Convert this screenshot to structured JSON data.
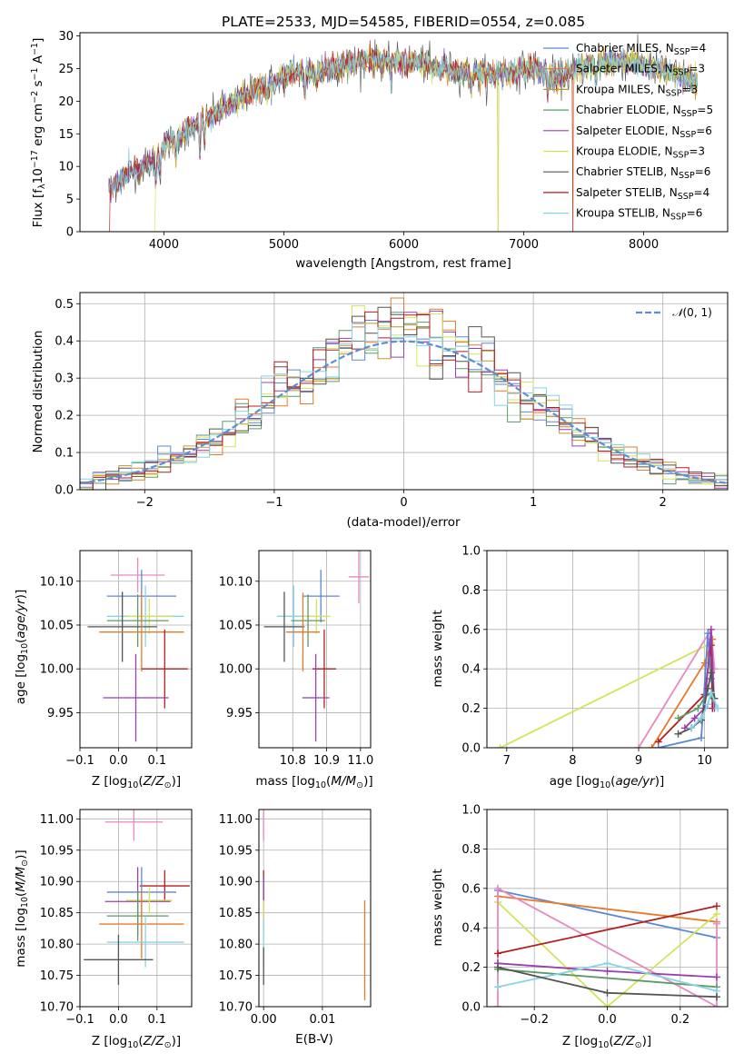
{
  "colors": {
    "Chabrier MILES": "#5b87d6",
    "Salpeter MILES": "#e67a29",
    "Kroupa MILES": "#c7962a",
    "Chabrier ELODIE": "#5c9a6b",
    "Salpeter ELODIE": "#9b3fb0",
    "Kroupa ELODIE": "#d4e35a",
    "Chabrier STELIB": "#555555",
    "Salpeter STELIB": "#b31f1f",
    "Kroupa STELIB": "#86d4e6",
    "pink": "#e68ac0",
    "gaussian": "#5b8fd6"
  },
  "chart_data": [
    {
      "id": "spectrum",
      "type": "line",
      "title": "PLATE=2533, MJD=54585, FIBERID=0554, z=0.085",
      "xlabel": "wavelength [Angstrom, rest frame]",
      "ylabel": "Flux [fλ10⁻¹⁷ erg cm⁻² s⁻¹ A⁻¹]",
      "xlim": [
        3300,
        8700
      ],
      "ylim": [
        0,
        30.5
      ],
      "xticks": [
        4000,
        5000,
        6000,
        7000,
        8000
      ],
      "yticks": [
        0,
        5,
        10,
        15,
        20,
        25,
        30
      ],
      "grid": false,
      "legend_position": "top-right",
      "continuum": [
        [
          3550,
          6.5
        ],
        [
          3700,
          9
        ],
        [
          3900,
          10.5
        ],
        [
          4000,
          13
        ],
        [
          4100,
          14.5
        ],
        [
          4300,
          16.5
        ],
        [
          4500,
          19
        ],
        [
          4700,
          21
        ],
        [
          4900,
          23
        ],
        [
          5100,
          24.5
        ],
        [
          5300,
          24.5
        ],
        [
          5500,
          25.5
        ],
        [
          5700,
          26.5
        ],
        [
          5900,
          26
        ],
        [
          6100,
          26
        ],
        [
          6300,
          25
        ],
        [
          6500,
          24.5
        ],
        [
          6700,
          24
        ],
        [
          6900,
          24.5
        ],
        [
          7100,
          25
        ],
        [
          7300,
          23.5
        ],
        [
          7500,
          25.5
        ],
        [
          7700,
          26
        ],
        [
          7900,
          26
        ],
        [
          8100,
          25
        ],
        [
          8300,
          24
        ],
        [
          8450,
          23
        ]
      ],
      "dips": [
        [
          3934,
          4
        ],
        [
          3968,
          3
        ],
        [
          4102,
          3
        ],
        [
          4300,
          4
        ],
        [
          4340,
          3
        ],
        [
          4861,
          2
        ],
        [
          5175,
          4
        ],
        [
          5270,
          2
        ],
        [
          5893,
          3
        ],
        [
          6563,
          2
        ],
        [
          7200,
          3
        ],
        [
          7600,
          3
        ]
      ],
      "legend": [
        "Chabrier MILES, N_SSP=4",
        "Salpeter MILES, N_SSP=3",
        "Kroupa MILES, N_SSP=3",
        "Chabrier ELODIE, N_SSP=5",
        "Salpeter ELODIE, N_SSP=6",
        "Kroupa ELODIE, N_SSP=3",
        "Chabrier STELIB, N_SSP=6",
        "Salpeter STELIB, N_SSP=4",
        "Kroupa STELIB, N_SSP=6"
      ]
    },
    {
      "id": "residuals",
      "type": "step",
      "xlabel": "(data-model)/error",
      "ylabel": "Normed distribution",
      "xlim": [
        -2.5,
        2.5
      ],
      "ylim": [
        0,
        0.53
      ],
      "xticks": [
        -2,
        -1,
        0,
        1,
        2
      ],
      "yticks": [
        0.0,
        0.1,
        0.2,
        0.3,
        0.4,
        0.5
      ],
      "grid": true,
      "bin_width": 0.1,
      "legend": [
        "𝒩(0, 1)"
      ],
      "legend_position": "top-right"
    },
    {
      "id": "age_vs_Z",
      "type": "errorbar",
      "xlabel": "Z [log₁₀(Z/Z⊙)]",
      "ylabel": "age  [log₁₀(age/yr)]",
      "xlim": [
        -0.1,
        0.19
      ],
      "ylim": [
        9.91,
        10.135
      ],
      "xticks": [
        -0.1,
        0.0,
        0.1
      ],
      "yticks": [
        9.95,
        10.0,
        10.05,
        10.1
      ],
      "grid": true,
      "points": [
        {
          "c": "pink",
          "x": 0.05,
          "xe": 0.07,
          "y": 10.107,
          "ye": 0.02
        },
        {
          "c": "Chabrier MILES",
          "x": 0.06,
          "xe": 0.09,
          "y": 10.083,
          "ye": 0.03
        },
        {
          "c": "Kroupa STELIB",
          "x": 0.07,
          "xe": 0.1,
          "y": 10.06,
          "ye": 0.035
        },
        {
          "c": "Kroupa ELODIE",
          "x": 0.08,
          "xe": 0.06,
          "y": 10.06,
          "ye": 0.02
        },
        {
          "c": "Chabrier ELODIE",
          "x": 0.05,
          "xe": 0.08,
          "y": 10.055,
          "ye": 0.03
        },
        {
          "c": "Chabrier STELIB",
          "x": 0.01,
          "xe": 0.09,
          "y": 10.048,
          "ye": 0.04
        },
        {
          "c": "Salpeter MILES",
          "x": 0.06,
          "xe": 0.11,
          "y": 10.042,
          "ye": 0.045
        },
        {
          "c": "Salpeter STELIB",
          "x": 0.12,
          "xe": 0.06,
          "y": 10.0,
          "ye": 0.045
        },
        {
          "c": "Salpeter ELODIE",
          "x": 0.045,
          "xe": 0.085,
          "y": 9.967,
          "ye": 0.05
        }
      ]
    },
    {
      "id": "age_vs_mass",
      "type": "errorbar",
      "xlabel": "mass [log₁₀(M/M⊙)]",
      "ylabel": "",
      "xlim": [
        10.7,
        11.03
      ],
      "ylim": [
        9.91,
        10.135
      ],
      "xticks": [
        10.8,
        10.9,
        11.0
      ],
      "yticks": [
        9.95,
        10.0,
        10.05,
        10.1
      ],
      "grid": true,
      "points": [
        {
          "c": "pink",
          "x": 10.995,
          "xe": 0.03,
          "y": 10.105,
          "ye": 0.03
        },
        {
          "c": "Chabrier MILES",
          "x": 10.883,
          "xe": 0.055,
          "y": 10.083,
          "ye": 0.03
        },
        {
          "c": "Kroupa STELIB",
          "x": 10.803,
          "xe": 0.05,
          "y": 10.06,
          "ye": 0.035
        },
        {
          "c": "Kroupa ELODIE",
          "x": 10.87,
          "xe": 0.04,
          "y": 10.06,
          "ye": 0.02
        },
        {
          "c": "Chabrier ELODIE",
          "x": 10.845,
          "xe": 0.05,
          "y": 10.055,
          "ye": 0.03
        },
        {
          "c": "Chabrier STELIB",
          "x": 10.775,
          "xe": 0.06,
          "y": 10.048,
          "ye": 0.04
        },
        {
          "c": "Salpeter MILES",
          "x": 10.83,
          "xe": 0.05,
          "y": 10.042,
          "ye": 0.045
        },
        {
          "c": "Salpeter STELIB",
          "x": 10.893,
          "xe": 0.035,
          "y": 10.0,
          "ye": 0.045
        },
        {
          "c": "Salpeter ELODIE",
          "x": 10.868,
          "xe": 0.04,
          "y": 9.967,
          "ye": 0.05
        }
      ]
    },
    {
      "id": "massweight_vs_age",
      "type": "line",
      "xlabel": "age  [log₁₀(age/yr)]",
      "ylabel": "mass weight",
      "xlim": [
        6.7,
        10.35
      ],
      "ylim": [
        0,
        1.0
      ],
      "xticks": [
        7,
        8,
        9,
        10
      ],
      "yticks": [
        0.0,
        0.2,
        0.4,
        0.6,
        0.8,
        1.0
      ],
      "grid": true,
      "series": [
        {
          "c": "Kroupa ELODIE",
          "pts": [
            [
              6.9,
              0.0
            ],
            [
              10.1,
              0.53
            ],
            [
              10.05,
              0.45
            ],
            [
              10.15,
              0.25
            ]
          ]
        },
        {
          "c": "pink",
          "pts": [
            [
              9.0,
              0.0
            ],
            [
              10.1,
              0.6
            ],
            [
              10.15,
              0.4
            ]
          ]
        },
        {
          "c": "Salpeter MILES",
          "pts": [
            [
              9.2,
              0.0
            ],
            [
              10.0,
              0.43
            ],
            [
              10.12,
              0.55
            ]
          ]
        },
        {
          "c": "Salpeter STELIB",
          "pts": [
            [
              9.3,
              0.03
            ],
            [
              10.0,
              0.27
            ],
            [
              10.1,
              0.52
            ],
            [
              10.12,
              0.2
            ]
          ]
        },
        {
          "c": "Chabrier MILES",
          "pts": [
            [
              9.3,
              0.0
            ],
            [
              9.95,
              0.05
            ],
            [
              10.05,
              0.58
            ],
            [
              10.1,
              0.35
            ]
          ]
        },
        {
          "c": "Chabrier ELODIE",
          "pts": [
            [
              9.6,
              0.15
            ],
            [
              9.9,
              0.2
            ],
            [
              10.05,
              0.28
            ],
            [
              10.12,
              0.25
            ]
          ]
        },
        {
          "c": "Salpeter ELODIE",
          "pts": [
            [
              9.7,
              0.1
            ],
            [
              9.85,
              0.15
            ],
            [
              10.0,
              0.2
            ],
            [
              10.1,
              0.6
            ],
            [
              10.15,
              0.2
            ]
          ]
        },
        {
          "c": "Chabrier STELIB",
          "pts": [
            [
              9.6,
              0.07
            ],
            [
              9.8,
              0.1
            ],
            [
              9.95,
              0.14
            ],
            [
              10.05,
              0.3
            ],
            [
              10.1,
              0.38
            ],
            [
              10.15,
              0.25
            ]
          ]
        },
        {
          "c": "Kroupa STELIB",
          "pts": [
            [
              9.8,
              0.1
            ],
            [
              9.95,
              0.15
            ],
            [
              10.05,
              0.22
            ],
            [
              10.1,
              0.28
            ],
            [
              10.2,
              0.2
            ]
          ]
        }
      ]
    },
    {
      "id": "mass_vs_Z",
      "type": "errorbar",
      "xlabel": "Z [log₁₀(Z/Z⊙)]",
      "ylabel": "mass [log₁₀(M/M⊙)]",
      "xlim": [
        -0.1,
        0.19
      ],
      "ylim": [
        10.7,
        11.015
      ],
      "xticks": [
        -0.1,
        0.0,
        0.1
      ],
      "yticks": [
        10.7,
        10.75,
        10.8,
        10.85,
        10.9,
        10.95,
        11.0
      ],
      "grid": true,
      "points": [
        {
          "c": "pink",
          "x": 0.04,
          "xe": 0.075,
          "y": 10.995,
          "ye": 0.03
        },
        {
          "c": "Salpeter STELIB",
          "x": 0.12,
          "xe": 0.065,
          "y": 10.893,
          "ye": 0.025
        },
        {
          "c": "Chabrier MILES",
          "x": 0.06,
          "xe": 0.09,
          "y": 10.883,
          "ye": 0.04
        },
        {
          "c": "Salpeter ELODIE",
          "x": 0.05,
          "xe": 0.085,
          "y": 10.868,
          "ye": 0.055
        },
        {
          "c": "Kroupa ELODIE",
          "x": 0.08,
          "xe": 0.06,
          "y": 10.87,
          "ye": 0.02
        },
        {
          "c": "Chabrier ELODIE",
          "x": 0.05,
          "xe": 0.08,
          "y": 10.845,
          "ye": 0.04
        },
        {
          "c": "Salpeter MILES",
          "x": 0.06,
          "xe": 0.11,
          "y": 10.832,
          "ye": 0.055
        },
        {
          "c": "Kroupa STELIB",
          "x": 0.07,
          "xe": 0.1,
          "y": 10.803,
          "ye": 0.04
        },
        {
          "c": "Chabrier STELIB",
          "x": 0.0,
          "xe": 0.09,
          "y": 10.775,
          "ye": 0.04
        }
      ]
    },
    {
      "id": "mass_vs_EBV",
      "type": "errorbar",
      "xlabel": "E(B-V)",
      "ylabel": "",
      "xlim": [
        -0.0008,
        0.0182
      ],
      "ylim": [
        10.7,
        11.015
      ],
      "xticks": [
        0.0,
        0.01
      ],
      "xticklabels": [
        "0.00",
        "0.01"
      ],
      "yticks": [
        10.7,
        10.75,
        10.8,
        10.85,
        10.9,
        10.95,
        11.0
      ],
      "grid": true,
      "points": [
        {
          "c": "pink",
          "x": 0.0,
          "xe": 0.0,
          "y": 10.995,
          "ye": 0.03
        },
        {
          "c": "Salpeter STELIB",
          "x": 0.0,
          "xe": 0.0,
          "y": 10.893,
          "ye": 0.025
        },
        {
          "c": "Salpeter ELODIE",
          "x": 0.0,
          "xe": 0.0,
          "y": 10.868,
          "ye": 0.04
        },
        {
          "c": "Kroupa ELODIE",
          "x": 0.0,
          "xe": 0.0,
          "y": 10.84,
          "ye": 0.03
        },
        {
          "c": "Kroupa STELIB",
          "x": 0.0,
          "xe": 0.0,
          "y": 10.8,
          "ye": 0.04
        },
        {
          "c": "Chabrier STELIB",
          "x": 0.0,
          "xe": 0.0,
          "y": 10.765,
          "ye": 0.03
        },
        {
          "c": "Salpeter MILES",
          "x": 0.0172,
          "xe": 0.0,
          "y": 10.79,
          "ye": 0.08
        }
      ]
    },
    {
      "id": "massweight_vs_Z",
      "type": "line",
      "xlabel": "Z [log₁₀(Z/Z⊙)]",
      "ylabel": "mass weight",
      "xlim": [
        -0.33,
        0.33
      ],
      "ylim": [
        0,
        1.0
      ],
      "xticks": [
        -0.2,
        0.0,
        0.2
      ],
      "yticks": [
        0.0,
        0.2,
        0.4,
        0.6,
        0.8,
        1.0
      ],
      "grid": true,
      "series": [
        {
          "c": "Chabrier MILES",
          "pts": [
            [
              -0.3,
              0.59
            ],
            [
              0.3,
              0.35
            ]
          ]
        },
        {
          "c": "Salpeter MILES",
          "pts": [
            [
              -0.3,
              0.56
            ],
            [
              0.3,
              0.43
            ]
          ]
        },
        {
          "c": "Kroupa ELODIE",
          "pts": [
            [
              -0.3,
              0.53
            ],
            [
              0.0,
              0.0
            ],
            [
              0.3,
              0.47
            ]
          ]
        },
        {
          "c": "pink",
          "pts": [
            [
              -0.3,
              0.0
            ],
            [
              -0.3,
              0.6
            ],
            [
              0.3,
              0.0
            ],
            [
              0.3,
              0.42
            ]
          ]
        },
        {
          "c": "Salpeter STELIB",
          "pts": [
            [
              -0.3,
              0.27
            ],
            [
              0.3,
              0.51
            ]
          ]
        },
        {
          "c": "Salpeter ELODIE",
          "pts": [
            [
              -0.3,
              0.22
            ],
            [
              0.0,
              0.18
            ],
            [
              0.3,
              0.15
            ]
          ]
        },
        {
          "c": "Chabrier ELODIE",
          "pts": [
            [
              -0.3,
              0.19
            ],
            [
              0.3,
              0.1
            ]
          ]
        },
        {
          "c": "Kroupa STELIB",
          "pts": [
            [
              -0.3,
              0.1
            ],
            [
              0.0,
              0.22
            ],
            [
              0.3,
              0.08
            ]
          ]
        },
        {
          "c": "Chabrier STELIB",
          "pts": [
            [
              -0.3,
              0.2
            ],
            [
              0.0,
              0.07
            ],
            [
              0.3,
              0.05
            ]
          ]
        }
      ]
    }
  ]
}
